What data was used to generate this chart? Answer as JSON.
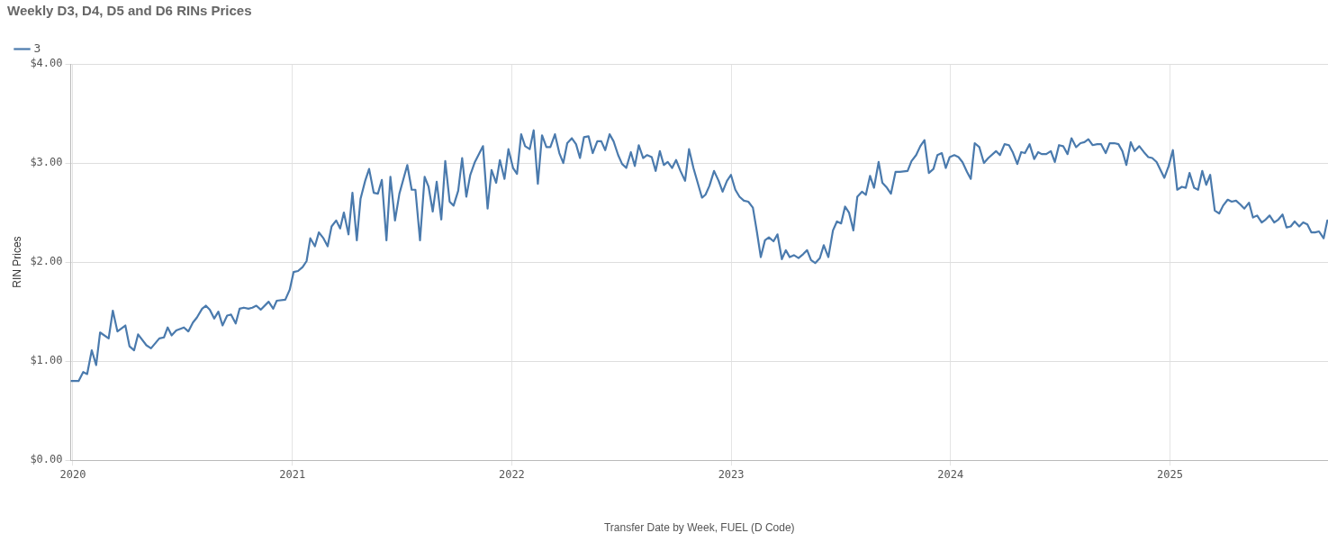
{
  "chart_data": {
    "type": "line",
    "title": "Weekly D3, D4, D5 and D6 RINs Prices",
    "xlabel": "Transfer Date by Week, FUEL (D Code)",
    "ylabel": "RIN Prices",
    "x": [
      2019.992,
      2020.026,
      2020.047,
      2020.065,
      2020.086,
      2020.106,
      2020.124,
      2020.163,
      2020.182,
      2020.203,
      2020.239,
      2020.258,
      2020.279,
      2020.297,
      2020.335,
      2020.356,
      2020.394,
      2020.415,
      2020.432,
      2020.45,
      2020.471,
      2020.506,
      2020.526,
      2020.547,
      2020.565,
      2020.589,
      2020.606,
      2020.624,
      2020.644,
      2020.663,
      2020.682,
      2020.703,
      2020.721,
      2020.742,
      2020.76,
      2020.779,
      2020.8,
      2020.818,
      2020.836,
      2020.856,
      2020.892,
      2020.913,
      2020.929,
      2020.968,
      2020.988,
      2021.006,
      2021.026,
      2021.047,
      2021.065,
      2021.082,
      2021.103,
      2021.121,
      2021.142,
      2021.161,
      2021.179,
      2021.2,
      2021.218,
      2021.235,
      2021.256,
      2021.274,
      2021.294,
      2021.311,
      2021.332,
      2021.35,
      2021.371,
      2021.39,
      2021.408,
      2021.429,
      2021.447,
      2021.468,
      2021.488,
      2021.524,
      2021.544,
      2021.561,
      2021.582,
      2021.603,
      2021.621,
      2021.64,
      2021.658,
      2021.679,
      2021.697,
      2021.717,
      2021.735,
      2021.756,
      2021.774,
      2021.793,
      2021.811,
      2021.832,
      2021.869,
      2021.89,
      2021.908,
      2021.929,
      2021.946,
      2021.967,
      2021.985,
      2022.006,
      2022.024,
      2022.043,
      2022.061,
      2022.082,
      2022.1,
      2022.119,
      2022.138,
      2022.158,
      2022.176,
      2022.197,
      2022.217,
      2022.235,
      2022.253,
      2022.274,
      2022.293,
      2022.311,
      2022.329,
      2022.35,
      2022.369,
      2022.39,
      2022.408,
      2022.426,
      2022.446,
      2022.464,
      2022.485,
      2022.503,
      2022.522,
      2022.543,
      2022.561,
      2022.579,
      2022.599,
      2022.617,
      2022.638,
      2022.656,
      2022.675,
      2022.693,
      2022.711,
      2022.731,
      2022.749,
      2022.769,
      2022.79,
      2022.808,
      2022.828,
      2022.867,
      2022.883,
      2022.901,
      2022.922,
      2022.943,
      2022.961,
      2022.981,
      2022.999,
      2023.019,
      2023.038,
      2023.058,
      2023.078,
      2023.099,
      2023.117,
      2023.135,
      2023.154,
      2023.172,
      2023.193,
      2023.211,
      2023.231,
      2023.249,
      2023.267,
      2023.286,
      2023.307,
      2023.328,
      2023.346,
      2023.364,
      2023.383,
      2023.404,
      2023.422,
      2023.443,
      2023.464,
      2023.482,
      2023.501,
      2023.519,
      2023.537,
      2023.557,
      2023.575,
      2023.596,
      2023.614,
      2023.633,
      2023.651,
      2023.672,
      2023.689,
      2023.71,
      2023.728,
      2023.749,
      2023.769,
      2023.804,
      2023.822,
      2023.843,
      2023.862,
      2023.881,
      2023.901,
      2023.922,
      2023.94,
      2023.96,
      2023.978,
      2023.996,
      2024.017,
      2024.036,
      2024.054,
      2024.075,
      2024.092,
      2024.11,
      2024.131,
      2024.152,
      2024.172,
      2024.207,
      2024.225,
      2024.246,
      2024.266,
      2024.283,
      2024.304,
      2024.322,
      2024.339,
      2024.36,
      2024.381,
      2024.399,
      2024.415,
      2024.436,
      2024.457,
      2024.475,
      2024.494,
      2024.513,
      2024.533,
      2024.551,
      2024.572,
      2024.592,
      2024.61,
      2024.628,
      2024.647,
      2024.668,
      2024.686,
      2024.707,
      2024.725,
      2024.746,
      2024.765,
      2024.783,
      2024.801,
      2024.821,
      2024.839,
      2024.86,
      2024.881,
      2024.901,
      2024.919,
      2024.939,
      2024.974,
      2024.994,
      2025.013,
      2025.033,
      2025.054,
      2025.072,
      2025.089,
      2025.11,
      2025.128,
      2025.147,
      2025.165,
      2025.183,
      2025.204,
      2025.224,
      2025.242,
      2025.263,
      2025.281,
      2025.301,
      2025.321,
      2025.339,
      2025.36,
      2025.378,
      2025.397,
      2025.418,
      2025.436,
      2025.454,
      2025.475,
      2025.494,
      2025.513,
      2025.531,
      2025.55,
      2025.568,
      2025.589,
      2025.607,
      2025.626,
      2025.644,
      2025.661,
      2025.679,
      2025.7,
      2025.717
    ],
    "series": [
      {
        "name": "3",
        "color": "#4a7aad",
        "values": [
          0.8,
          0.8,
          0.89,
          0.87,
          1.11,
          0.96,
          1.29,
          1.23,
          1.51,
          1.3,
          1.36,
          1.15,
          1.11,
          1.27,
          1.16,
          1.13,
          1.23,
          1.24,
          1.34,
          1.26,
          1.31,
          1.34,
          1.3,
          1.39,
          1.44,
          1.53,
          1.56,
          1.52,
          1.43,
          1.5,
          1.36,
          1.46,
          1.47,
          1.38,
          1.53,
          1.54,
          1.53,
          1.54,
          1.56,
          1.52,
          1.6,
          1.53,
          1.61,
          1.62,
          1.72,
          1.9,
          1.91,
          1.95,
          2.01,
          2.24,
          2.16,
          2.3,
          2.24,
          2.16,
          2.36,
          2.42,
          2.34,
          2.5,
          2.28,
          2.7,
          2.22,
          2.64,
          2.82,
          2.94,
          2.7,
          2.69,
          2.83,
          2.22,
          2.86,
          2.42,
          2.69,
          2.98,
          2.73,
          2.73,
          2.22,
          2.86,
          2.76,
          2.51,
          2.81,
          2.43,
          3.02,
          2.61,
          2.57,
          2.72,
          3.05,
          2.66,
          2.88,
          3.01,
          3.17,
          2.54,
          2.93,
          2.8,
          3.03,
          2.84,
          3.14,
          2.95,
          2.89,
          3.29,
          3.17,
          3.14,
          3.33,
          2.79,
          3.28,
          3.16,
          3.16,
          3.29,
          3.1,
          3.0,
          3.2,
          3.25,
          3.19,
          3.05,
          3.26,
          3.27,
          3.1,
          3.22,
          3.22,
          3.13,
          3.29,
          3.22,
          3.08,
          2.99,
          2.95,
          3.11,
          2.97,
          3.18,
          3.05,
          3.08,
          3.06,
          2.92,
          3.12,
          2.98,
          3.01,
          2.95,
          3.03,
          2.92,
          2.82,
          3.14,
          2.95,
          2.65,
          2.68,
          2.77,
          2.92,
          2.82,
          2.71,
          2.82,
          2.88,
          2.73,
          2.66,
          2.62,
          2.61,
          2.55,
          2.31,
          2.05,
          2.22,
          2.25,
          2.21,
          2.28,
          2.03,
          2.12,
          2.05,
          2.07,
          2.04,
          2.08,
          2.12,
          2.02,
          1.99,
          2.04,
          2.17,
          2.05,
          2.32,
          2.41,
          2.39,
          2.56,
          2.5,
          2.32,
          2.66,
          2.71,
          2.68,
          2.87,
          2.75,
          3.01,
          2.8,
          2.75,
          2.69,
          2.91,
          2.91,
          2.92,
          3.02,
          3.08,
          3.17,
          3.23,
          2.9,
          2.94,
          3.08,
          3.1,
          2.95,
          3.06,
          3.08,
          3.06,
          3.01,
          2.91,
          2.84,
          3.2,
          3.16,
          3.0,
          3.05,
          3.12,
          3.08,
          3.19,
          3.18,
          3.11,
          2.99,
          3.11,
          3.1,
          3.19,
          3.04,
          3.11,
          3.09,
          3.09,
          3.12,
          3.01,
          3.18,
          3.17,
          3.09,
          3.25,
          3.16,
          3.2,
          3.21,
          3.24,
          3.18,
          3.19,
          3.19,
          3.1,
          3.2,
          3.2,
          3.19,
          3.12,
          2.98,
          3.21,
          3.12,
          3.17,
          3.11,
          3.06,
          3.05,
          3.01,
          2.85,
          2.97,
          3.13,
          2.73,
          2.76,
          2.75,
          2.9,
          2.75,
          2.73,
          2.92,
          2.78,
          2.88,
          2.52,
          2.49,
          2.57,
          2.63,
          2.61,
          2.62,
          2.58,
          2.54,
          2.6,
          2.45,
          2.47,
          2.4,
          2.43,
          2.47,
          2.4,
          2.43,
          2.48,
          2.35,
          2.36,
          2.41,
          2.36,
          2.4,
          2.38,
          2.3,
          2.3,
          2.31,
          2.24,
          2.42
        ]
      }
    ],
    "xlim": [
      2019.99,
      2025.72
    ],
    "xticks": [
      2020,
      2021,
      2022,
      2023,
      2024,
      2025
    ],
    "ylim": [
      0,
      4
    ],
    "yticks": [
      {
        "value": 0,
        "label": "$0.00"
      },
      {
        "value": 1,
        "label": "$1.00"
      },
      {
        "value": 2,
        "label": "$2.00"
      },
      {
        "value": 3,
        "label": "$3.00"
      },
      {
        "value": 4,
        "label": "$4.00"
      }
    ],
    "grid": true,
    "legend": "top left",
    "marker": "none",
    "line_style": "solid"
  }
}
